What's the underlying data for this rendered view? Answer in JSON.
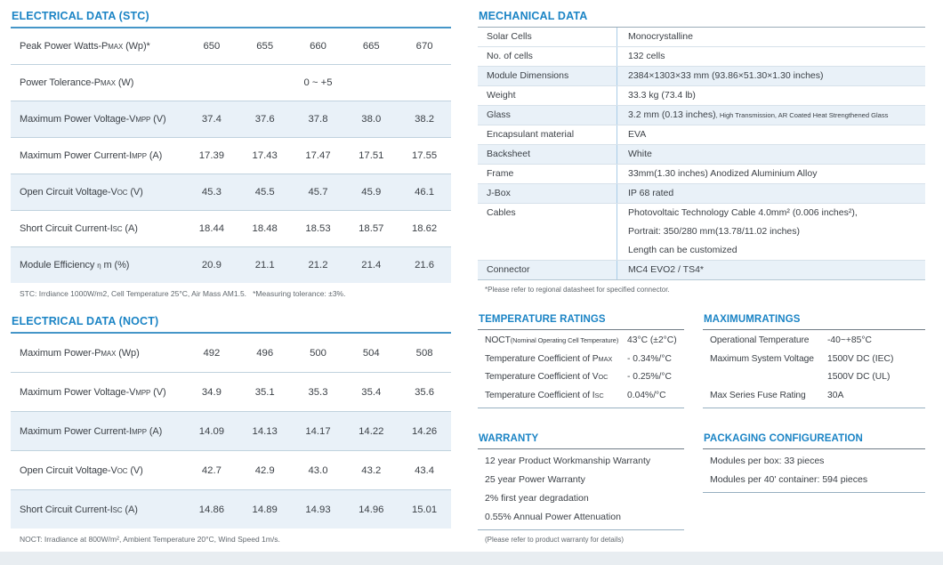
{
  "colors": {
    "title_blue": "#1b84c5",
    "row_shade": "#e9f1f8",
    "divider_blue": "#a9cce7",
    "footer_bar": "#e8edf1",
    "text": "#3c4147"
  },
  "stc": {
    "title": "ELECTRICAL DATA (STC)",
    "rows": [
      {
        "label": "Peak Power Watts-P«MAX» (Wp)*",
        "values": [
          "650",
          "655",
          "660",
          "665",
          "670"
        ],
        "shaded": false
      },
      {
        "label": "Power Tolerance-P«MAX» (W)",
        "span_value": "0 ~ +5",
        "shaded": false
      },
      {
        "label": "Maximum Power Voltage-V«MPP» (V)",
        "values": [
          "37.4",
          "37.6",
          "37.8",
          "38.0",
          "38.2"
        ],
        "shaded": true
      },
      {
        "label": "Maximum Power Current-I«MPP» (A)",
        "values": [
          "17.39",
          "17.43",
          "17.47",
          "17.51",
          "17.55"
        ],
        "shaded": false
      },
      {
        "label": "Open Circuit Voltage-V«OC» (V)",
        "values": [
          "45.3",
          "45.5",
          "45.7",
          "45.9",
          "46.1"
        ],
        "shaded": true
      },
      {
        "label": "Short Circuit Current-I«SC» (A)",
        "values": [
          "18.44",
          "18.48",
          "18.53",
          "18.57",
          "18.62"
        ],
        "shaded": false
      },
      {
        "label": "Module Efficiency «η» m (%)",
        "values": [
          "20.9",
          "21.1",
          "21.2",
          "21.4",
          "21.6"
        ],
        "shaded": true
      }
    ],
    "footnote": "STC: Irrdiance 1000W/m2, Cell Temperature 25°C, Air Mass AM1.5.   *Measuring tolerance: ±3%."
  },
  "noct": {
    "title": "ELECTRICAL DATA (NOCT)",
    "rows": [
      {
        "label": "Maximum Power-P«MAX» (Wp)",
        "values": [
          "492",
          "496",
          "500",
          "504",
          "508"
        ],
        "shaded": false
      },
      {
        "label": "Maximum Power Voltage-V«MPP» (V)",
        "values": [
          "34.9",
          "35.1",
          "35.3",
          "35.4",
          "35.6"
        ],
        "shaded": false
      },
      {
        "label": "Maximum Power Current-I«MPP» (A)",
        "values": [
          "14.09",
          "14.13",
          "14.17",
          "14.22",
          "14.26"
        ],
        "shaded": true
      },
      {
        "label": "Open Circuit Voltage-V«OC» (V)",
        "values": [
          "42.7",
          "42.9",
          "43.0",
          "43.2",
          "43.4"
        ],
        "shaded": false
      },
      {
        "label": "Short Circuit Current-I«SC» (A)",
        "values": [
          "14.86",
          "14.89",
          "14.93",
          "14.96",
          "15.01"
        ],
        "shaded": true
      }
    ],
    "footnote": "NOCT: Irradiance at 800W/m², Ambient Temperature 20°C, Wind Speed 1m/s."
  },
  "mechanical": {
    "title": "MECHANICAL DATA",
    "rows": [
      {
        "label": "Solar Cells",
        "value": "Monocrystalline",
        "shaded": false
      },
      {
        "label": "No. of cells",
        "value": "132 cells",
        "shaded": false
      },
      {
        "label": "Module Dimensions",
        "value": "2384×1303×33 mm (93.86×51.30×1.30 inches)",
        "shaded": true
      },
      {
        "label": "Weight",
        "value": "33.3 kg (73.4 lb)",
        "shaded": false
      },
      {
        "label": "Glass",
        "value": "3.2 mm (0.13 inches)«, High Transmission, AR Coated Heat Strengthened Glass»",
        "shaded": true
      },
      {
        "label": "Encapsulant material",
        "value": "EVA",
        "shaded": false
      },
      {
        "label": "Backsheet",
        "value": "White",
        "shaded": true
      },
      {
        "label": "Frame",
        "value": "33mm(1.30 inches)  Anodized  Aluminium Alloy",
        "shaded": false
      },
      {
        "label": "J-Box",
        "value": "IP 68 rated",
        "shaded": true
      },
      {
        "label": "Cables",
        "value": "Photovoltaic Technology Cable 4.0mm² (0.006 inches²),\nPortrait: 350/280 mm(13.78/11.02 inches)\nLength can be customized",
        "shaded": false
      },
      {
        "label": "Connector",
        "value": "MC4 EVO2 / TS4*",
        "shaded": true
      }
    ],
    "footnote": "*Please refer to regional datasheet for specified connector."
  },
  "temperature_ratings": {
    "title": "TEMPERATURE RATINGS",
    "rows": [
      {
        "label": "NOCT«(Nominal Operating Cell Temperature)»",
        "value": "43°C (±2°C)"
      },
      {
        "label": "Temperature Coefficient of P«MAX»",
        "value": "- 0.34%/°C"
      },
      {
        "label": "Temperature Coefficient of V«OC»",
        "value": "- 0.25%/°C"
      },
      {
        "label": "Temperature Coefficient of I«SC»",
        "value": "0.04%/°C"
      }
    ]
  },
  "maximum_ratings": {
    "title": "MAXIMUMRATINGS",
    "rows": [
      {
        "label": "Operational Temperature",
        "value": "-40~+85°C"
      },
      {
        "label": "Maximum System Voltage",
        "value": "1500V DC (IEC)\n1500V DC (UL)"
      },
      {
        "label": "Max Series Fuse Rating",
        "value": "30A"
      }
    ]
  },
  "warranty": {
    "title": "WARRANTY",
    "lines": [
      "12 year Product Workmanship Warranty",
      "25 year Power Warranty",
      "2% first year degradation",
      "0.55% Annual Power Attenuation"
    ],
    "footnote": "(Please refer to product warranty for details)"
  },
  "packaging": {
    "title": "PACKAGING CONFIGUREATION",
    "lines": [
      "Modules per box: 33 pieces",
      "Modules per 40' container: 594 pieces"
    ]
  }
}
